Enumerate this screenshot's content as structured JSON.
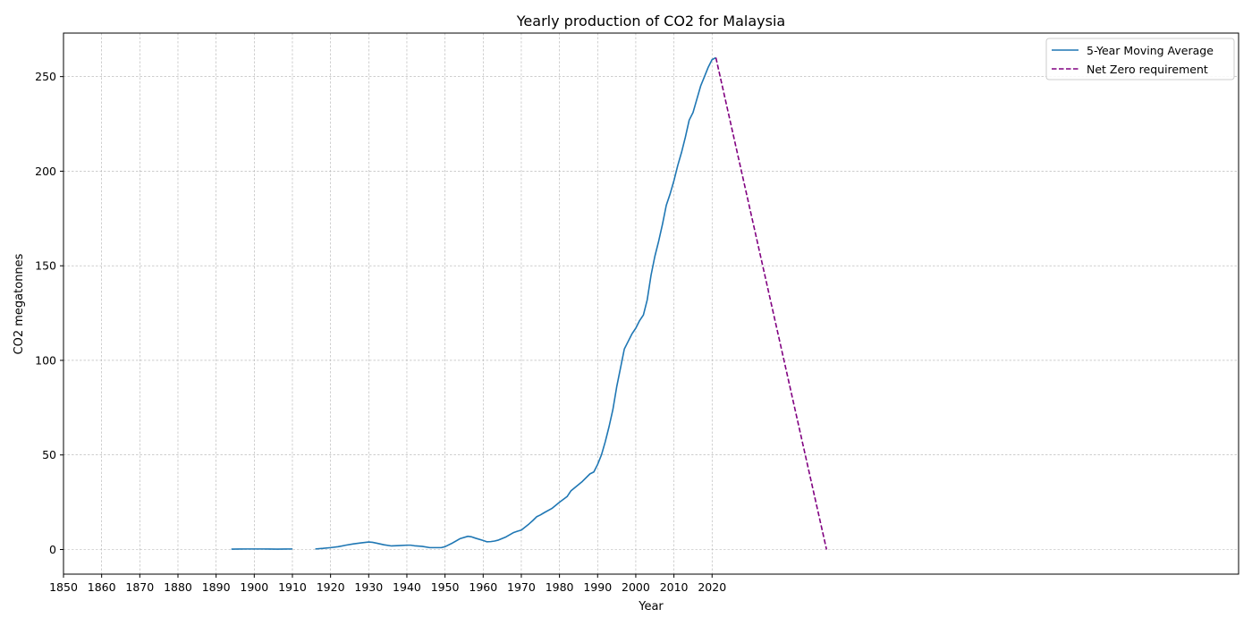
{
  "chart_data": {
    "type": "line",
    "title": "Yearly production of CO2 for Malaysia",
    "xlabel": "Year",
    "ylabel": "CO2 megatonnes",
    "xlim": [
      1850,
      2158
    ],
    "ylim": [
      -13,
      273
    ],
    "xticks": [
      1850,
      1860,
      1870,
      1880,
      1890,
      1900,
      1910,
      1920,
      1930,
      1940,
      1950,
      1960,
      1970,
      1980,
      1990,
      2000,
      2010,
      2020
    ],
    "yticks": [
      0,
      50,
      100,
      150,
      200,
      250
    ],
    "grid": true,
    "legend_position": "top-right",
    "series": [
      {
        "name": "5-Year Moving Average",
        "color": "#1f77b4",
        "style": "solid",
        "segments": [
          {
            "x": [
              1894,
              1896,
              1898,
              1900,
              1902,
              1904,
              1906,
              1908,
              1910
            ],
            "y": [
              0.2,
              0.25,
              0.3,
              0.3,
              0.3,
              0.25,
              0.2,
              0.25,
              0.3
            ]
          },
          {
            "x": [
              1916,
              1918,
              1920,
              1922,
              1924,
              1926,
              1928,
              1930,
              1931,
              1932,
              1934,
              1936,
              1938,
              1940,
              1941,
              1942,
              1944,
              1946,
              1948,
              1949,
              1950,
              1952,
              1954,
              1956,
              1957,
              1958,
              1960,
              1961,
              1962,
              1963,
              1964,
              1966,
              1968,
              1969,
              1970,
              1972,
              1973,
              1974,
              1975,
              1976,
              1978,
              1980,
              1982,
              1983,
              1984,
              1986,
              1988,
              1989,
              1990,
              1991,
              1992,
              1993,
              1994,
              1995,
              1996,
              1997,
              1998,
              1999,
              2000,
              2001,
              2002,
              2003,
              2004,
              2005,
              2006,
              2007,
              2008,
              2009,
              2010,
              2011,
              2012,
              2013,
              2014,
              2015,
              2016,
              2017,
              2018,
              2019,
              2020,
              2021
            ],
            "y": [
              0.3,
              0.6,
              1.0,
              1.5,
              2.3,
              3.0,
              3.5,
              4.0,
              3.8,
              3.4,
              2.5,
              1.9,
              2.1,
              2.3,
              2.3,
              2.0,
              1.7,
              1.0,
              1.0,
              1.0,
              1.5,
              3.5,
              5.8,
              7.0,
              6.7,
              6.0,
              4.8,
              4.1,
              4.2,
              4.5,
              5.0,
              6.7,
              9.0,
              9.7,
              10.3,
              13.5,
              15.3,
              17.3,
              18.3,
              19.5,
              21.7,
              25.0,
              28.0,
              31.0,
              32.7,
              36.0,
              40.0,
              41.0,
              45.0,
              50.0,
              57.0,
              65.0,
              74.0,
              86.0,
              96.0,
              106.0,
              110.0,
              114.0,
              117.0,
              121.0,
              124.0,
              132.0,
              145.0,
              155.0,
              163.0,
              172.0,
              182.0,
              188.0,
              195.0,
              203.0,
              210.0,
              218.0,
              227.0,
              231.0,
              238.0,
              245.0,
              250.0,
              255.0,
              259.0,
              260.0
            ]
          }
        ]
      },
      {
        "name": "Net Zero requirement",
        "color": "#800080",
        "style": "dashed",
        "segments": [
          {
            "x": [
              2021,
              2050
            ],
            "y": [
              260,
              0
            ]
          }
        ]
      }
    ]
  }
}
